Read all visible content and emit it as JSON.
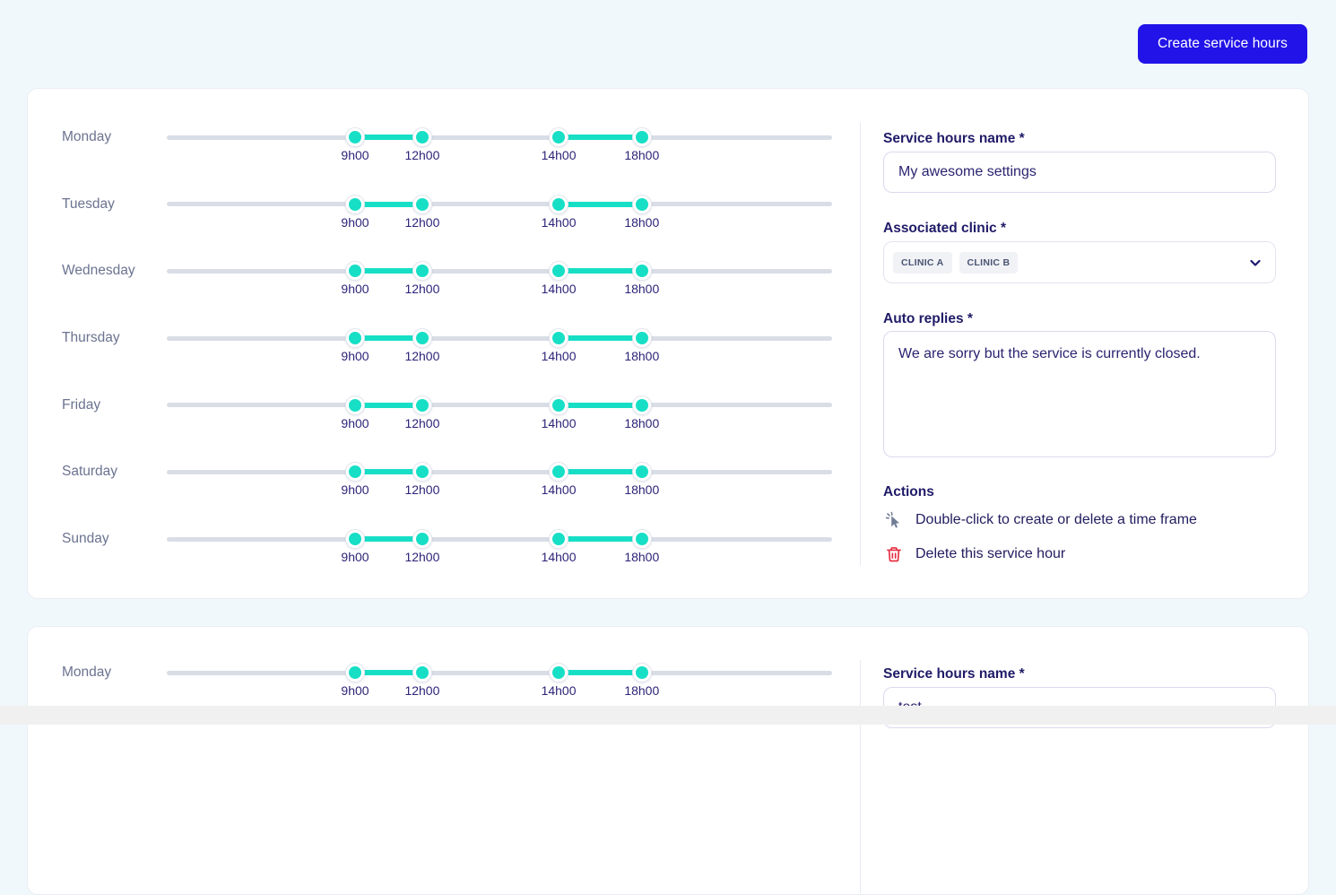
{
  "header": {
    "create_button": "Create service hours"
  },
  "colors": {
    "accent_blue": "#2213e8",
    "teal": "#17dfc6",
    "navy_heading": "#1f1b67",
    "track_gray": "#d9dde6",
    "delete_red": "#e62e43"
  },
  "slider": {
    "times": [
      "9h00",
      "12h00",
      "14h00",
      "18h00"
    ],
    "handle_positions_pct": [
      28.3,
      38.4,
      58.9,
      71.4
    ],
    "active_segments_pct": [
      [
        28.3,
        38.4
      ],
      [
        58.9,
        71.4
      ]
    ]
  },
  "cards": [
    {
      "days": [
        "Monday",
        "Tuesday",
        "Wednesday",
        "Thursday",
        "Friday",
        "Saturday",
        "Sunday"
      ],
      "form": {
        "name_label": "Service hours name *",
        "name_value": "My awesome settings",
        "clinic_label": "Associated clinic *",
        "clinic_tags": [
          "CLINIC A",
          "CLINIC B"
        ],
        "auto_replies_label": "Auto replies *",
        "auto_replies_value": "We are sorry but the service is currently closed.",
        "actions_title": "Actions",
        "action_double_click": "Double-click to create or delete a time frame",
        "action_delete": "Delete this service hour"
      }
    },
    {
      "days": [
        "Monday"
      ],
      "form": {
        "name_label": "Service hours name *",
        "name_value": "test"
      }
    }
  ]
}
